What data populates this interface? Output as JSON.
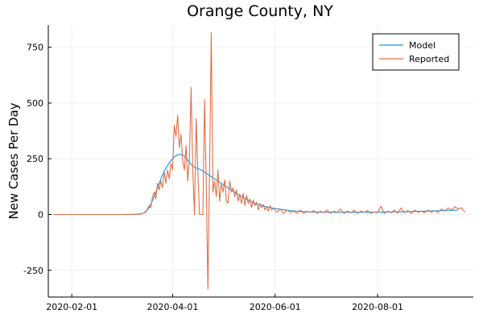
{
  "chart_data": {
    "type": "line",
    "title": "Orange County, NY",
    "xlabel": "",
    "ylabel": "New Cases Per Day",
    "x_range": [
      "2020-01-18",
      "2020-09-27"
    ],
    "ylim": [
      -370,
      850
    ],
    "x_ticks": [
      "2020-02-01",
      "2020-04-01",
      "2020-06-01",
      "2020-08-01"
    ],
    "y_ticks": [
      -250,
      0,
      250,
      500,
      750
    ],
    "grid": true,
    "legend_position": "top-right",
    "series": [
      {
        "name": "Model",
        "color": "#009af9",
        "points": [
          [
            "2020-01-21",
            0
          ],
          [
            "2020-02-15",
            0
          ],
          [
            "2020-03-01",
            0
          ],
          [
            "2020-03-10",
            1
          ],
          [
            "2020-03-13",
            3
          ],
          [
            "2020-03-15",
            8
          ],
          [
            "2020-03-17",
            20
          ],
          [
            "2020-03-19",
            45
          ],
          [
            "2020-03-21",
            80
          ],
          [
            "2020-03-23",
            120
          ],
          [
            "2020-03-25",
            160
          ],
          [
            "2020-03-27",
            195
          ],
          [
            "2020-03-29",
            220
          ],
          [
            "2020-03-31",
            242
          ],
          [
            "2020-04-02",
            258
          ],
          [
            "2020-04-04",
            268
          ],
          [
            "2020-04-06",
            270
          ],
          [
            "2020-04-08",
            262
          ],
          [
            "2020-04-10",
            245
          ],
          [
            "2020-04-12",
            225
          ],
          [
            "2020-04-14",
            212
          ],
          [
            "2020-04-18",
            200
          ],
          [
            "2020-04-22",
            180
          ],
          [
            "2020-04-26",
            160
          ],
          [
            "2020-04-30",
            140
          ],
          [
            "2020-05-05",
            115
          ],
          [
            "2020-05-10",
            90
          ],
          [
            "2020-05-15",
            68
          ],
          [
            "2020-05-20",
            50
          ],
          [
            "2020-05-25",
            38
          ],
          [
            "2020-05-31",
            28
          ],
          [
            "2020-06-10",
            17
          ],
          [
            "2020-06-20",
            12
          ],
          [
            "2020-07-05",
            10
          ],
          [
            "2020-07-20",
            10
          ],
          [
            "2020-08-05",
            11
          ],
          [
            "2020-08-20",
            13
          ],
          [
            "2020-09-01",
            16
          ],
          [
            "2020-09-10",
            18
          ],
          [
            "2020-09-18",
            20
          ]
        ]
      },
      {
        "name": "Reported",
        "color": "#e26f46",
        "points": [
          [
            "2020-01-21",
            0
          ],
          [
            "2020-02-15",
            0
          ],
          [
            "2020-03-08",
            0
          ],
          [
            "2020-03-10",
            2
          ],
          [
            "2020-03-12",
            0
          ],
          [
            "2020-03-14",
            5
          ],
          [
            "2020-03-16",
            10
          ],
          [
            "2020-03-18",
            40
          ],
          [
            "2020-03-19",
            30
          ],
          [
            "2020-03-20",
            80
          ],
          [
            "2020-03-21",
            100
          ],
          [
            "2020-03-22",
            70
          ],
          [
            "2020-03-23",
            140
          ],
          [
            "2020-03-24",
            110
          ],
          [
            "2020-03-25",
            150
          ],
          [
            "2020-03-26",
            120
          ],
          [
            "2020-03-27",
            190
          ],
          [
            "2020-03-28",
            140
          ],
          [
            "2020-03-29",
            200
          ],
          [
            "2020-03-30",
            160
          ],
          [
            "2020-03-31",
            230
          ],
          [
            "2020-04-01",
            200
          ],
          [
            "2020-04-02",
            400
          ],
          [
            "2020-04-03",
            350
          ],
          [
            "2020-04-04",
            445
          ],
          [
            "2020-04-05",
            300
          ],
          [
            "2020-04-06",
            360
          ],
          [
            "2020-04-07",
            240
          ],
          [
            "2020-04-08",
            200
          ],
          [
            "2020-04-09",
            310
          ],
          [
            "2020-04-10",
            150
          ],
          [
            "2020-04-11",
            250
          ],
          [
            "2020-04-12",
            570
          ],
          [
            "2020-04-13",
            200
          ],
          [
            "2020-04-14",
            0
          ],
          [
            "2020-04-15",
            430
          ],
          [
            "2020-04-16",
            200
          ],
          [
            "2020-04-17",
            0
          ],
          [
            "2020-04-18",
            0
          ],
          [
            "2020-04-19",
            0
          ],
          [
            "2020-04-20",
            515
          ],
          [
            "2020-04-21",
            150
          ],
          [
            "2020-04-22",
            -335
          ],
          [
            "2020-04-23",
            200
          ],
          [
            "2020-04-24",
            815
          ],
          [
            "2020-04-25",
            100
          ],
          [
            "2020-04-26",
            150
          ],
          [
            "2020-04-27",
            80
          ],
          [
            "2020-04-28",
            200
          ],
          [
            "2020-04-29",
            60
          ],
          [
            "2020-04-30",
            140
          ],
          [
            "2020-05-01",
            100
          ],
          [
            "2020-05-02",
            155
          ],
          [
            "2020-05-03",
            60
          ],
          [
            "2020-05-04",
            50
          ],
          [
            "2020-05-05",
            150
          ],
          [
            "2020-05-06",
            100
          ],
          [
            "2020-05-07",
            120
          ],
          [
            "2020-05-08",
            80
          ],
          [
            "2020-05-09",
            110
          ],
          [
            "2020-05-10",
            60
          ],
          [
            "2020-05-11",
            90
          ],
          [
            "2020-05-12",
            50
          ],
          [
            "2020-05-13",
            95
          ],
          [
            "2020-05-14",
            40
          ],
          [
            "2020-05-15",
            85
          ],
          [
            "2020-05-16",
            50
          ],
          [
            "2020-05-17",
            70
          ],
          [
            "2020-05-18",
            30
          ],
          [
            "2020-05-19",
            65
          ],
          [
            "2020-05-20",
            40
          ],
          [
            "2020-05-21",
            55
          ],
          [
            "2020-05-22",
            20
          ],
          [
            "2020-05-23",
            50
          ],
          [
            "2020-05-24",
            30
          ],
          [
            "2020-05-25",
            45
          ],
          [
            "2020-05-26",
            20
          ],
          [
            "2020-05-27",
            35
          ],
          [
            "2020-05-28",
            15
          ],
          [
            "2020-05-29",
            40
          ],
          [
            "2020-05-30",
            20
          ],
          [
            "2020-05-31",
            30
          ],
          [
            "2020-06-02",
            10
          ],
          [
            "2020-06-04",
            25
          ],
          [
            "2020-06-06",
            5
          ],
          [
            "2020-06-08",
            20
          ],
          [
            "2020-06-10",
            10
          ],
          [
            "2020-06-12",
            15
          ],
          [
            "2020-06-14",
            5
          ],
          [
            "2020-06-16",
            20
          ],
          [
            "2020-06-18",
            5
          ],
          [
            "2020-06-20",
            15
          ],
          [
            "2020-06-22",
            10
          ],
          [
            "2020-06-24",
            18
          ],
          [
            "2020-06-26",
            5
          ],
          [
            "2020-06-28",
            15
          ],
          [
            "2020-06-30",
            8
          ],
          [
            "2020-07-02",
            20
          ],
          [
            "2020-07-04",
            5
          ],
          [
            "2020-07-06",
            15
          ],
          [
            "2020-07-08",
            10
          ],
          [
            "2020-07-10",
            25
          ],
          [
            "2020-07-12",
            5
          ],
          [
            "2020-07-14",
            15
          ],
          [
            "2020-07-16",
            8
          ],
          [
            "2020-07-18",
            20
          ],
          [
            "2020-07-20",
            5
          ],
          [
            "2020-07-22",
            15
          ],
          [
            "2020-07-24",
            10
          ],
          [
            "2020-07-26",
            18
          ],
          [
            "2020-07-28",
            5
          ],
          [
            "2020-07-30",
            12
          ],
          [
            "2020-08-01",
            8
          ],
          [
            "2020-08-03",
            38
          ],
          [
            "2020-08-05",
            5
          ],
          [
            "2020-08-07",
            15
          ],
          [
            "2020-08-09",
            8
          ],
          [
            "2020-08-11",
            20
          ],
          [
            "2020-08-13",
            5
          ],
          [
            "2020-08-15",
            30
          ],
          [
            "2020-08-17",
            8
          ],
          [
            "2020-08-19",
            18
          ],
          [
            "2020-08-21",
            5
          ],
          [
            "2020-08-23",
            20
          ],
          [
            "2020-08-25",
            10
          ],
          [
            "2020-08-27",
            15
          ],
          [
            "2020-08-29",
            8
          ],
          [
            "2020-08-31",
            20
          ],
          [
            "2020-09-02",
            10
          ],
          [
            "2020-09-04",
            18
          ],
          [
            "2020-09-06",
            8
          ],
          [
            "2020-09-08",
            25
          ],
          [
            "2020-09-10",
            15
          ],
          [
            "2020-09-12",
            30
          ],
          [
            "2020-09-14",
            20
          ],
          [
            "2020-09-16",
            35
          ],
          [
            "2020-09-18",
            25
          ],
          [
            "2020-09-20",
            30
          ],
          [
            "2020-09-22",
            10
          ]
        ]
      }
    ]
  }
}
